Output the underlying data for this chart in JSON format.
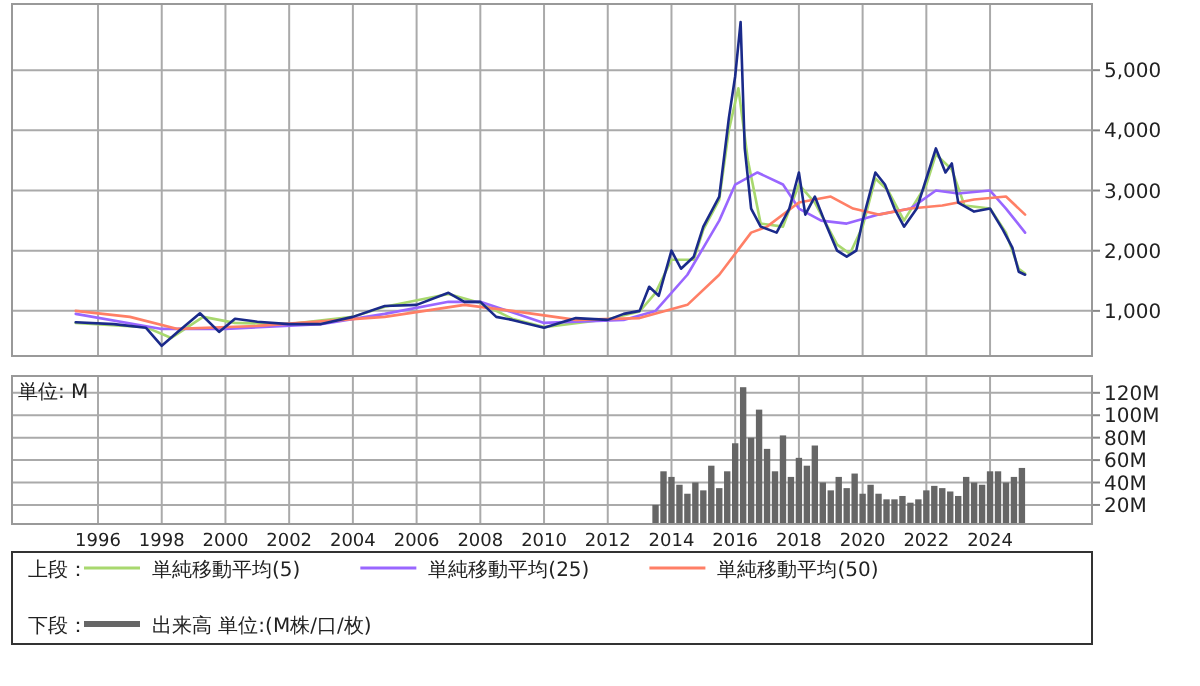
{
  "chart_data": [
    {
      "type": "line",
      "xlim": [
        1993.3,
        2027.2
      ],
      "xticks": [
        1996,
        1998,
        2000,
        2002,
        2004,
        2006,
        2008,
        2010,
        2012,
        2014,
        2016,
        2018,
        2020,
        2022,
        2024
      ],
      "ylim": [
        250,
        6100
      ],
      "yticks": [
        {
          "value": 1000,
          "label": "1,000"
        },
        {
          "value": 2000,
          "label": "2,000"
        },
        {
          "value": 3000,
          "label": "3,000"
        },
        {
          "value": 4000,
          "label": "4,000"
        },
        {
          "value": 5000,
          "label": "5,000"
        }
      ],
      "tick_labels": "y",
      "grid": true,
      "legend": "bottom",
      "legend_title": "上段：",
      "series": [
        {
          "color": "#1a2a8a",
          "x": [
            1995.3,
            1996.5,
            1997.5,
            1998.0,
            1998.5,
            1999.2,
            1999.8,
            2000.3,
            2001,
            2002,
            2003,
            2004,
            2005,
            2006,
            2007,
            2007.5,
            2008,
            2008.5,
            2009,
            2010,
            2011,
            2012,
            2012.5,
            2013,
            2013.3,
            2013.6,
            2014,
            2014.3,
            2014.7,
            2015,
            2015.5,
            2015.8,
            2016.0,
            2016.17,
            2016.3,
            2016.5,
            2016.8,
            2017.3,
            2017.7,
            2018,
            2018.2,
            2018.5,
            2018.8,
            2019.2,
            2019.5,
            2019.8,
            2020,
            2020.4,
            2020.7,
            2021,
            2021.3,
            2021.7,
            2022,
            2022.3,
            2022.6,
            2022.8,
            2023,
            2023.5,
            2024,
            2024.4,
            2024.7,
            2024.9,
            2025.1
          ],
          "values": [
            810,
            780,
            720,
            420,
            650,
            960,
            650,
            870,
            820,
            780,
            780,
            900,
            1080,
            1100,
            1300,
            1150,
            1150,
            900,
            850,
            720,
            880,
            850,
            950,
            1000,
            1400,
            1250,
            2000,
            1700,
            1900,
            2400,
            2900,
            4200,
            4900,
            5800,
            3700,
            2700,
            2400,
            2300,
            2700,
            3300,
            2600,
            2900,
            2500,
            2000,
            1900,
            2000,
            2500,
            3300,
            3100,
            2700,
            2400,
            2700,
            3200,
            3700,
            3300,
            3450,
            2800,
            2650,
            2700,
            2350,
            2050,
            1650,
            1600
          ]
        },
        {
          "name": "単純移動平均(5)",
          "color": "#a8d86e",
          "x": [
            1995.3,
            1997.5,
            1998.3,
            1999.3,
            2000.3,
            2002,
            2004,
            2005,
            2007,
            2008,
            2009,
            2010,
            2012,
            2013,
            2013.5,
            2014,
            2014.7,
            2015,
            2015.5,
            2015.8,
            2016.1,
            2016.4,
            2016.8,
            2017.5,
            2018,
            2018.5,
            2019.2,
            2019.6,
            2020,
            2020.4,
            2020.8,
            2021.3,
            2022,
            2022.3,
            2022.8,
            2023.2,
            2024,
            2024.5,
            2024.9,
            2025.1
          ],
          "values": [
            800,
            730,
            550,
            900,
            800,
            780,
            900,
            1070,
            1280,
            1130,
            870,
            730,
            860,
            990,
            1300,
            1850,
            1850,
            2350,
            2850,
            4000,
            4700,
            3500,
            2450,
            2400,
            3100,
            2800,
            2100,
            1950,
            2400,
            3200,
            3000,
            2500,
            3100,
            3600,
            3350,
            2750,
            2700,
            2300,
            1700,
            1620
          ]
        },
        {
          "name": "単純移動平均(25)",
          "color": "#9966ff",
          "x": [
            1995.3,
            1998,
            2000,
            2003,
            2005,
            2007,
            2008,
            2010,
            2012.5,
            2013.5,
            2014.5,
            2015.5,
            2016,
            2016.7,
            2017.5,
            2018,
            2018.7,
            2019.5,
            2020.5,
            2021.5,
            2022.3,
            2023,
            2024,
            2024.5,
            2025.1
          ],
          "values": [
            950,
            700,
            700,
            780,
            950,
            1150,
            1150,
            800,
            850,
            1000,
            1600,
            2500,
            3100,
            3300,
            3100,
            2700,
            2500,
            2450,
            2600,
            2700,
            3000,
            2950,
            3000,
            2700,
            2300
          ]
        },
        {
          "name": "単純移動平均(50)",
          "color": "#ff7f66",
          "x": [
            1995.3,
            1997,
            1998.5,
            2001,
            2005,
            2007.5,
            2009,
            2011,
            2013,
            2014.5,
            2015.5,
            2016.5,
            2017,
            2018,
            2019,
            2019.7,
            2020.5,
            2021.5,
            2022.5,
            2023.5,
            2024.5,
            2025.1
          ],
          "values": [
            1000,
            900,
            700,
            750,
            900,
            1100,
            1000,
            850,
            880,
            1100,
            1600,
            2300,
            2400,
            2800,
            2900,
            2700,
            2600,
            2700,
            2750,
            2850,
            2900,
            2600
          ]
        }
      ]
    },
    {
      "type": "bar",
      "xlim": [
        1993.3,
        2027.2
      ],
      "xticks": [
        1996,
        1998,
        2000,
        2002,
        2004,
        2006,
        2008,
        2010,
        2012,
        2014,
        2016,
        2018,
        2020,
        2022,
        2024
      ],
      "ylim": [
        3,
        135
      ],
      "yticks": [
        {
          "value": 20,
          "label": "20M"
        },
        {
          "value": 40,
          "label": "40M"
        },
        {
          "value": 60,
          "label": "60M"
        },
        {
          "value": 80,
          "label": "80M"
        },
        {
          "value": 100,
          "label": "100M"
        },
        {
          "value": 120,
          "label": "120M"
        }
      ],
      "grid": true,
      "legend": "bottom",
      "legend_title": "下段：",
      "annotations": [
        "単位: M"
      ],
      "series": [
        {
          "name": "出来高 単位:(M株/口/枚)",
          "color": "#666666",
          "x": [
            2013.5,
            2013.75,
            2014,
            2014.25,
            2014.5,
            2014.75,
            2015,
            2015.25,
            2015.5,
            2015.75,
            2016,
            2016.25,
            2016.5,
            2016.75,
            2017,
            2017.25,
            2017.5,
            2017.75,
            2018,
            2018.25,
            2018.5,
            2018.75,
            2019,
            2019.25,
            2019.5,
            2019.75,
            2020,
            2020.25,
            2020.5,
            2020.75,
            2021,
            2021.25,
            2021.5,
            2021.75,
            2022,
            2022.25,
            2022.5,
            2022.75,
            2023,
            2023.25,
            2023.5,
            2023.75,
            2024,
            2024.25,
            2024.5,
            2024.75,
            2025
          ],
          "values": [
            20,
            50,
            45,
            38,
            30,
            40,
            33,
            55,
            35,
            50,
            75,
            125,
            80,
            105,
            70,
            50,
            82,
            45,
            62,
            55,
            73,
            40,
            33,
            45,
            35,
            48,
            30,
            38,
            30,
            25,
            25,
            28,
            22,
            25,
            33,
            37,
            35,
            32,
            28,
            45,
            40,
            38,
            50,
            50,
            40,
            45,
            53
          ]
        }
      ]
    }
  ]
}
